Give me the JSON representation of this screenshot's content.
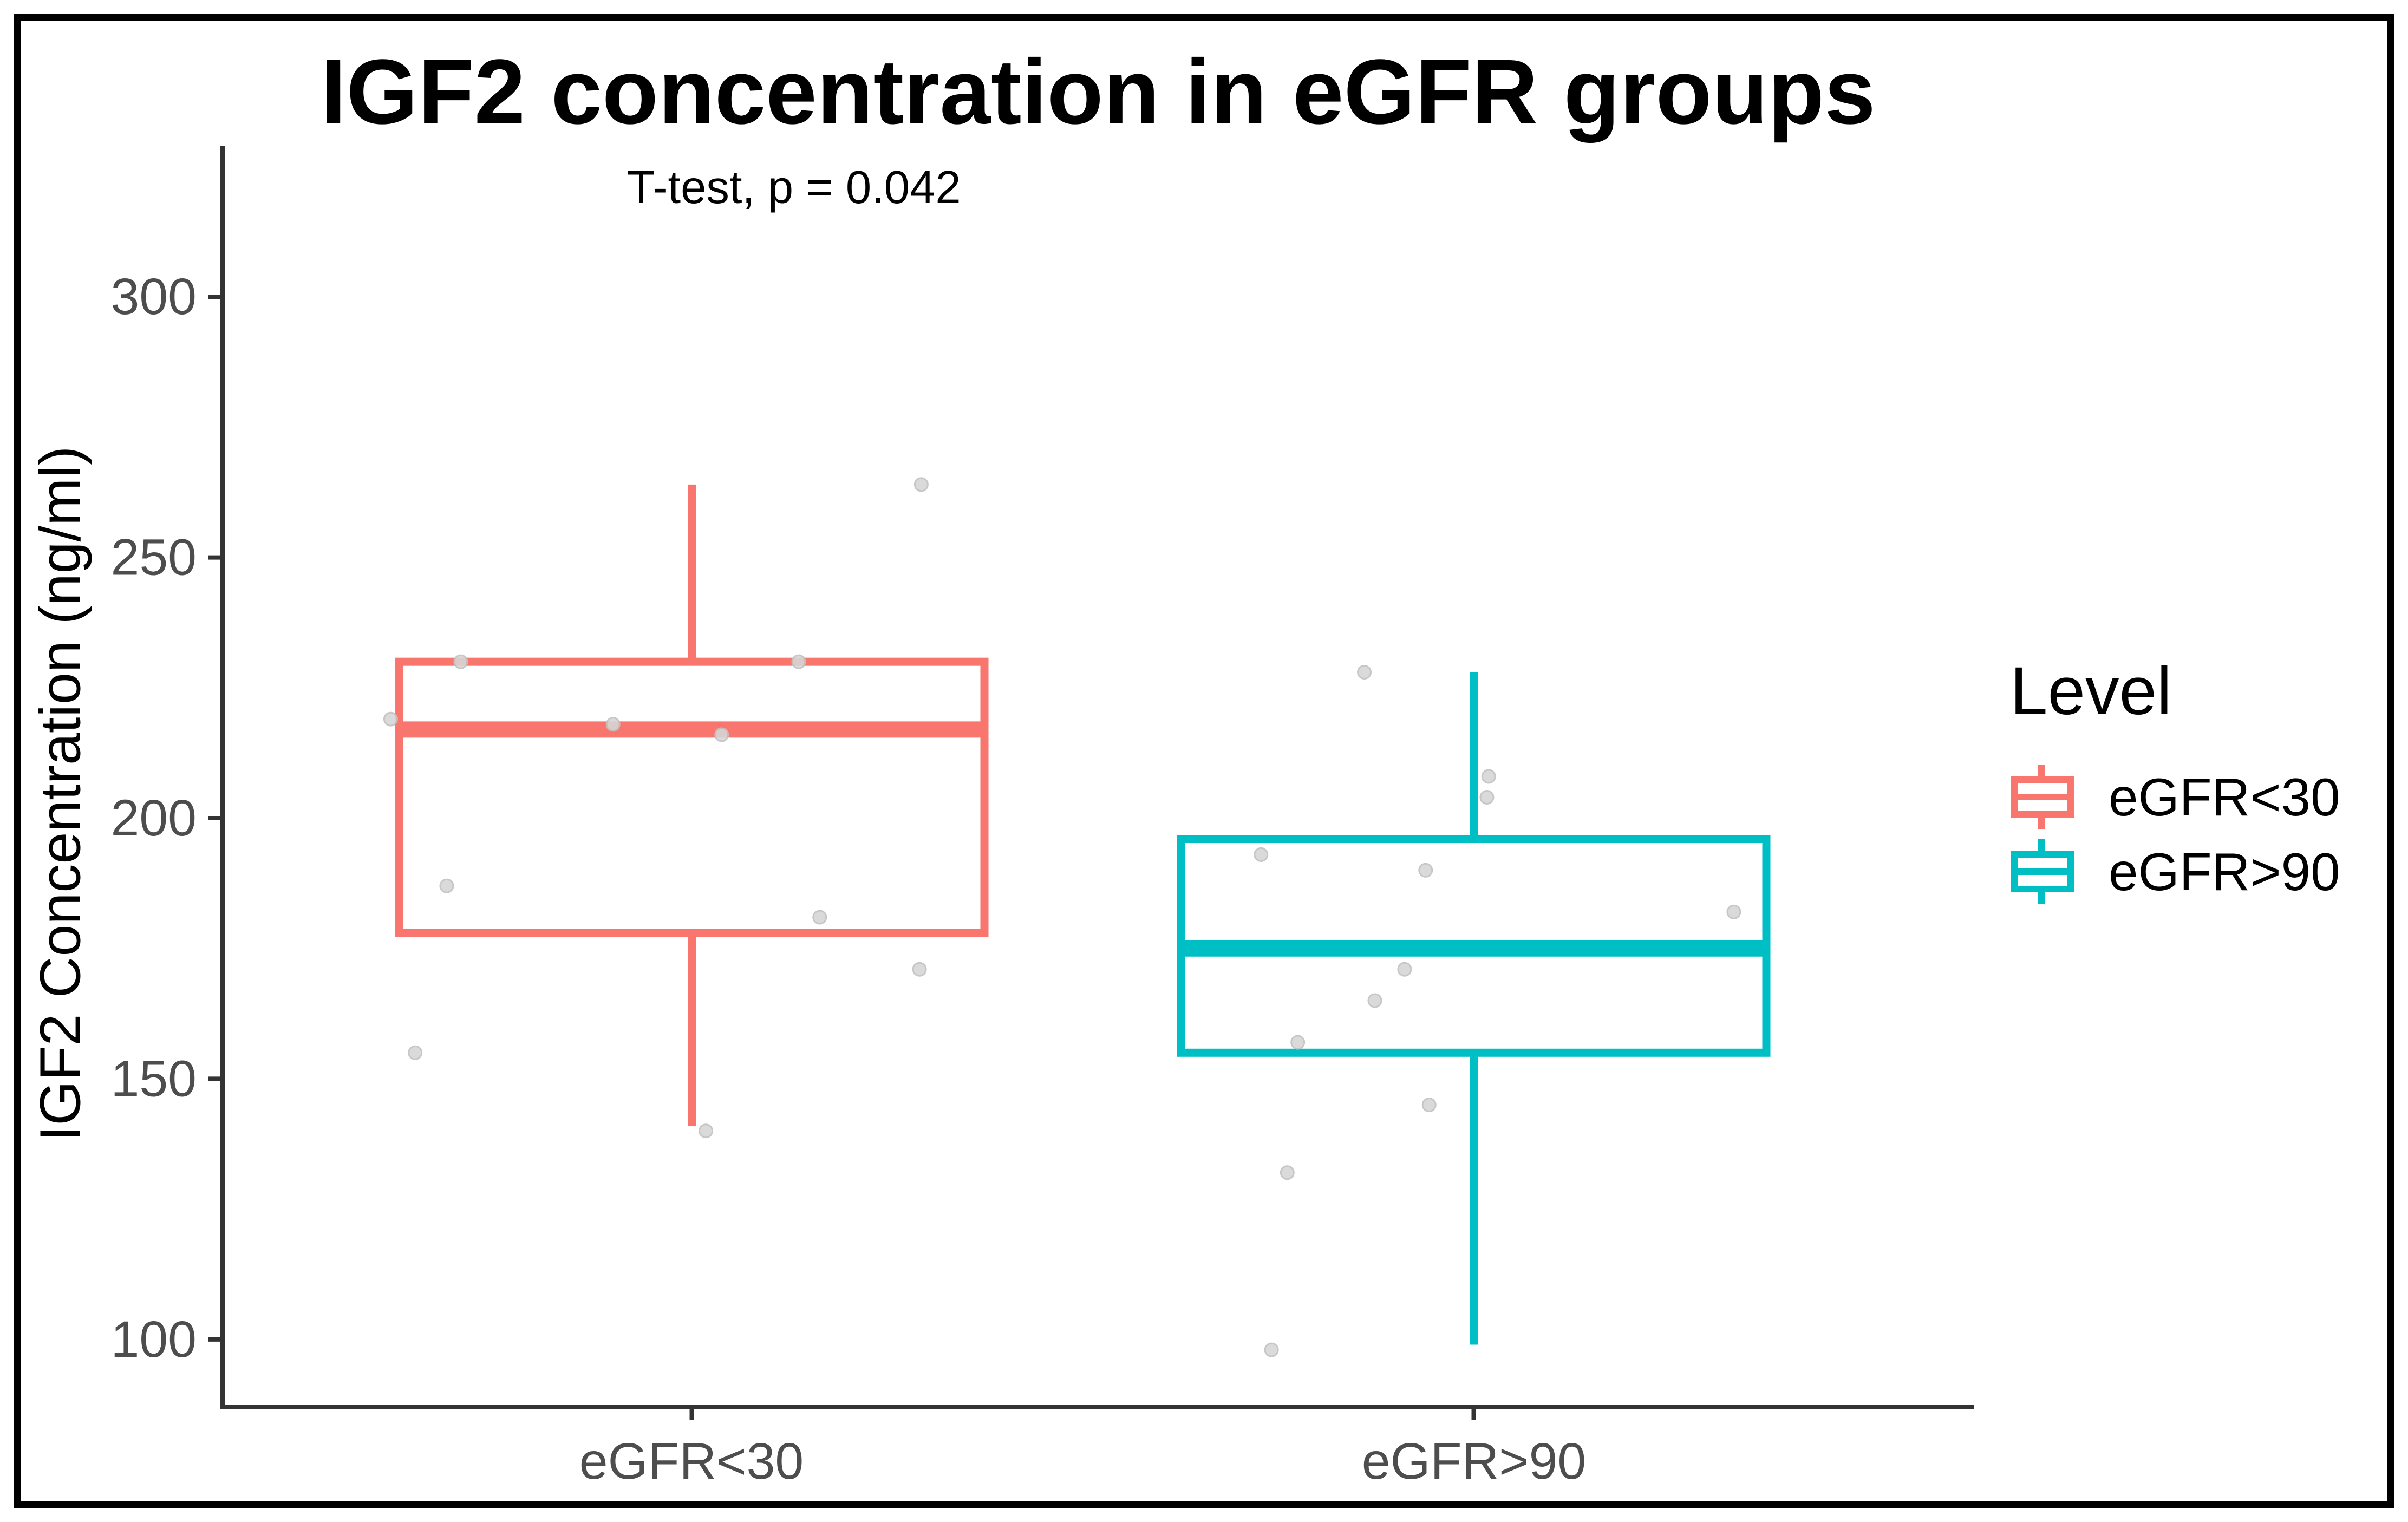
{
  "chart_data": {
    "type": "boxplot",
    "title": "IGF2 concentration in eGFR groups",
    "annotation": "T-test, p = 0.042",
    "xlabel": "",
    "ylabel": "IGF2 Concentration (ng/ml)",
    "categories": [
      "eGFR<30",
      "eGFR>90"
    ],
    "yticks": [
      100,
      150,
      200,
      250,
      300
    ],
    "ylim": [
      87,
      329
    ],
    "grid": false,
    "legend": {
      "title": "Level",
      "position": "right",
      "entries": [
        {
          "label": "eGFR<30",
          "color": "#F8766D"
        },
        {
          "label": "eGFR>90",
          "color": "#00BFC4"
        }
      ]
    },
    "series": [
      {
        "name": "eGFR<30",
        "color": "#F8766D",
        "whisker_low": 141,
        "q1": 178,
        "median": 217,
        "q3": 230,
        "whisker_high": 264
      },
      {
        "name": "eGFR>90",
        "color": "#00BFC4",
        "whisker_low": 99,
        "q1": 155,
        "median": 175,
        "q3": 196,
        "whisker_high": 228
      }
    ],
    "points": [
      {
        "x": 0.136,
        "y": 230
      },
      {
        "x": 0.329,
        "y": 230
      },
      {
        "x": 0.096,
        "y": 219
      },
      {
        "x": 0.223,
        "y": 218
      },
      {
        "x": 0.285,
        "y": 216
      },
      {
        "x": 0.128,
        "y": 187
      },
      {
        "x": 0.341,
        "y": 181
      },
      {
        "x": 0.398,
        "y": 171
      },
      {
        "x": 0.11,
        "y": 155
      },
      {
        "x": 0.276,
        "y": 140
      },
      {
        "x": 0.399,
        "y": 264
      },
      {
        "x": 0.652,
        "y": 228
      },
      {
        "x": 0.723,
        "y": 208
      },
      {
        "x": 0.722,
        "y": 204
      },
      {
        "x": 0.593,
        "y": 193
      },
      {
        "x": 0.687,
        "y": 190
      },
      {
        "x": 0.863,
        "y": 182
      },
      {
        "x": 0.675,
        "y": 171
      },
      {
        "x": 0.658,
        "y": 165
      },
      {
        "x": 0.614,
        "y": 157
      },
      {
        "x": 0.689,
        "y": 145
      },
      {
        "x": 0.608,
        "y": 132
      },
      {
        "x": 0.599,
        "y": 98
      }
    ]
  },
  "colors": {
    "axis": "#333333",
    "tick_label": "#4d4d4d",
    "point_fill": "#d6d6d6",
    "point_stroke": "#c2c2c2",
    "background": "#ffffff",
    "border": "#000000"
  }
}
